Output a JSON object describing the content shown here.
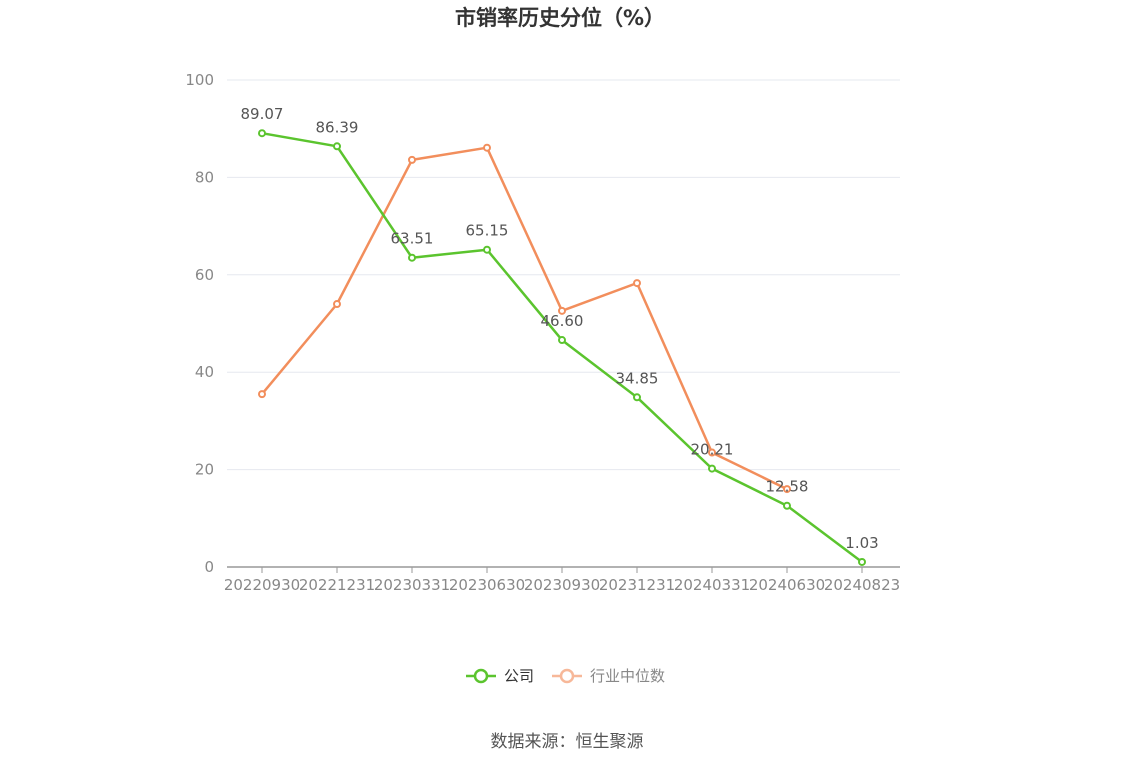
{
  "chart_data": {
    "type": "line",
    "title": "市销率历史分位（%）",
    "x": [
      "20220930",
      "20221231",
      "20230331",
      "20230630",
      "20230930",
      "20231231",
      "20240331",
      "20240630",
      "20240823"
    ],
    "ylim": [
      0,
      100
    ],
    "yticks": [
      0,
      20,
      40,
      60,
      80,
      100
    ],
    "grid": true,
    "legend_position": "bottom",
    "series": [
      {
        "name": "公司",
        "color": "#5bc42e",
        "values": [
          89.07,
          86.39,
          63.51,
          65.15,
          46.6,
          34.85,
          20.21,
          12.58,
          1.03
        ],
        "labels": [
          "89.07",
          "86.39",
          "63.51",
          "65.15",
          "46.60",
          "34.85",
          "20.21",
          "12.58",
          "1.03"
        ]
      },
      {
        "name": "行业中位数",
        "color": "#f28e5c",
        "values": [
          35.5,
          54.0,
          83.6,
          86.1,
          52.6,
          58.3,
          23.5,
          16.0,
          null
        ],
        "labels": []
      }
    ]
  },
  "source": "数据来源：恒生聚源"
}
